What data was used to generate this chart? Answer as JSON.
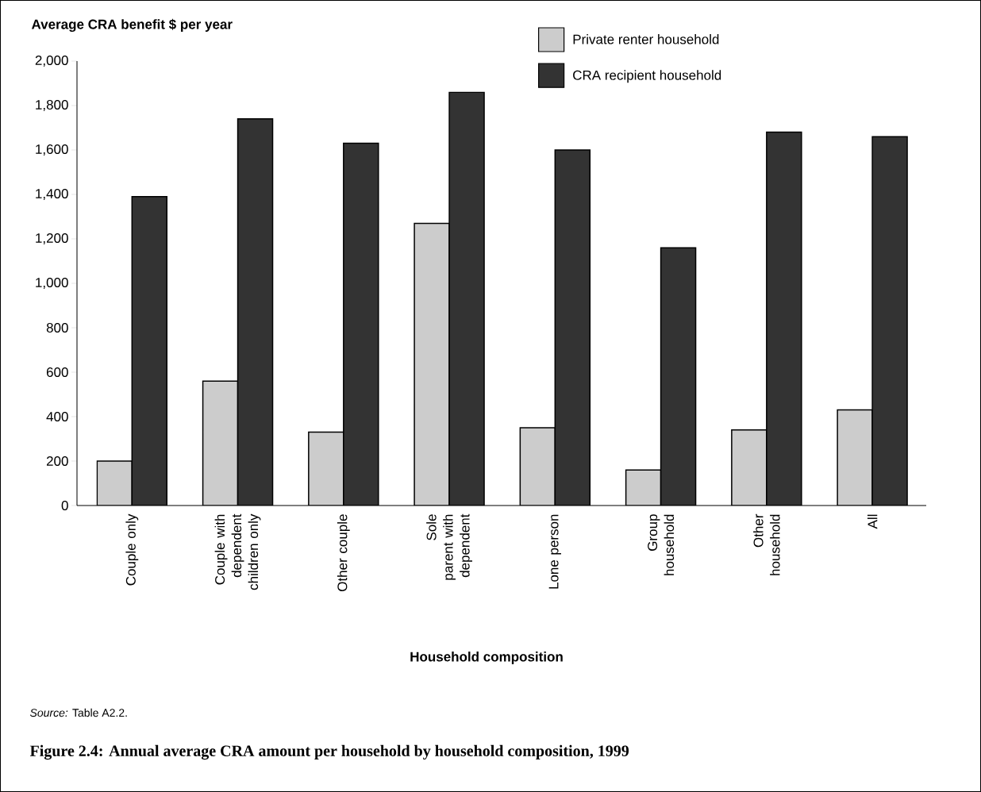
{
  "chart_data": {
    "type": "bar",
    "title": "Figure 2.4: Annual average CRA amount per household by household composition, 1999",
    "xlabel": "Household composition",
    "ylabel": "Average CRA benefit $ per year",
    "annotations": [
      "*Source:* Table A2.2."
    ],
    "categories": [
      "Couple only",
      "Couple with dependent children only",
      "Other couple",
      "Sole parent with dependent",
      "Lone person",
      "Group household",
      "Other household",
      "All"
    ],
    "series": [
      {
        "name": "Private renter household",
        "color": "#cccccc",
        "values": [
          200,
          560,
          330,
          1270,
          350,
          160,
          340,
          430
        ]
      },
      {
        "name": "CRA recipient household",
        "color": "#333333",
        "values": [
          1390,
          1740,
          1630,
          1860,
          1600,
          1160,
          1680,
          1660
        ]
      }
    ],
    "ylim": [
      0,
      2000
    ],
    "yticks": [
      {
        "value": 0,
        "label": "0"
      },
      {
        "value": 200,
        "label": "200"
      },
      {
        "value": 400,
        "label": "400"
      },
      {
        "value": 600,
        "label": "600"
      },
      {
        "value": 800,
        "label": "800"
      },
      {
        "value": 1000,
        "label": "1,000"
      },
      {
        "value": 1200,
        "label": "1,200"
      },
      {
        "value": 1400,
        "label": "1,400"
      },
      {
        "value": 1600,
        "label": "1,600"
      },
      {
        "value": 1800,
        "label": "1,800"
      },
      {
        "value": 2000,
        "label": "2,000"
      }
    ],
    "grid": false,
    "legend": "top right"
  }
}
